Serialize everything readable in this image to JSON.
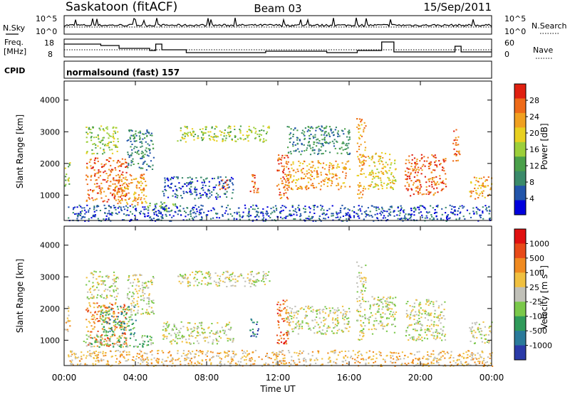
{
  "header": {
    "station": "Saskatoon (fitACF)",
    "beam": "Beam 03",
    "date": "15/Sep/2011"
  },
  "top_panel": {
    "left_label": "N.Sky",
    "left_ticks": [
      "10^5",
      "10^0"
    ],
    "right_ticks": [
      "10^5",
      "10^0"
    ],
    "right_label": "N.Search",
    "right_line_style": "dotted"
  },
  "freq_panel": {
    "left_label_line1": "Freq.",
    "left_label_line2": "[MHz]",
    "left_ticks": [
      "18",
      "8"
    ],
    "right_ticks": [
      "60",
      "0"
    ],
    "right_label": "Nave",
    "right_line_style": "dotted"
  },
  "cpid": {
    "label": "CPID",
    "value": "normalsound (fast) 157"
  },
  "chart_data": [
    {
      "type": "heatmap",
      "panel": "power",
      "ylabel": "Slant Range [km]",
      "yticks": [
        "1000",
        "2000",
        "3000",
        "4000"
      ],
      "ylim": [
        200,
        4600
      ],
      "colorbar_label": "Power [dB]",
      "colorbar_ticks": [
        "28",
        "24",
        "20",
        "16",
        "12",
        "8",
        "4"
      ],
      "colors": [
        "#0000dd",
        "#2255aa",
        "#3a8a6a",
        "#4aa04a",
        "#9ccf3a",
        "#e8d020",
        "#f0a020",
        "#ee6a18",
        "#e02010"
      ],
      "scatter_regions": [
        {
          "t0": 0.0,
          "t1": 0.3,
          "r0": 1300,
          "r1": 2100,
          "level": 4
        },
        {
          "t0": 1.2,
          "t1": 3.0,
          "r0": 2300,
          "r1": 3200,
          "level": 4
        },
        {
          "t0": 1.2,
          "t1": 3.5,
          "r0": 800,
          "r1": 2200,
          "level": 7
        },
        {
          "t0": 2.8,
          "t1": 4.6,
          "r0": 700,
          "r1": 1700,
          "level": 6
        },
        {
          "t0": 3.5,
          "t1": 5.0,
          "r0": 1800,
          "r1": 3100,
          "level": 2
        },
        {
          "t0": 4.6,
          "t1": 6.2,
          "r0": 500,
          "r1": 800,
          "level": 3
        },
        {
          "t0": 6.3,
          "t1": 11.5,
          "r0": 2700,
          "r1": 3200,
          "level": 4
        },
        {
          "t0": 5.5,
          "t1": 9.5,
          "r0": 900,
          "r1": 1600,
          "level": 1
        },
        {
          "t0": 8.6,
          "t1": 9.2,
          "r0": 1200,
          "r1": 1500,
          "level": 7
        },
        {
          "t0": 10.4,
          "t1": 10.9,
          "r0": 1100,
          "r1": 1700,
          "level": 7
        },
        {
          "t0": 11.9,
          "t1": 12.6,
          "r0": 900,
          "r1": 2300,
          "level": 7
        },
        {
          "t0": 12.4,
          "t1": 16.0,
          "r0": 1200,
          "r1": 2100,
          "level": 6
        },
        {
          "t0": 12.5,
          "t1": 16.0,
          "r0": 2300,
          "r1": 3200,
          "level": 2
        },
        {
          "t0": 16.4,
          "t1": 16.9,
          "r0": 900,
          "r1": 3500,
          "level": 6
        },
        {
          "t0": 17.0,
          "t1": 18.6,
          "r0": 1200,
          "r1": 2400,
          "level": 5
        },
        {
          "t0": 19.1,
          "t1": 21.4,
          "r0": 1000,
          "r1": 2300,
          "level": 7
        },
        {
          "t0": 21.8,
          "t1": 22.2,
          "r0": 2100,
          "r1": 3100,
          "level": 7
        },
        {
          "t0": 22.7,
          "t1": 24.0,
          "r0": 900,
          "r1": 1600,
          "level": 6
        },
        {
          "t0": 0.2,
          "t1": 24.0,
          "r0": 200,
          "r1": 700,
          "level": 1
        }
      ]
    },
    {
      "type": "heatmap",
      "panel": "velocity",
      "xlabel": "Time UT",
      "ylabel": "Slant Range [km]",
      "yticks": [
        "1000",
        "2000",
        "3000",
        "4000"
      ],
      "ylim": [
        200,
        4600
      ],
      "xticks": [
        "00:00",
        "04:00",
        "08:00",
        "12:00",
        "16:00",
        "20:00",
        "00:00"
      ],
      "colorbar_label": "Velocity [m s",
      "colorbar_exp": "-1",
      "colorbar_label_end": "]",
      "colorbar_ticks": [
        "1000",
        "500",
        "100",
        "25",
        "-25",
        "-100",
        "-500",
        "-1000"
      ],
      "colors": [
        "#2a3aa8",
        "#2a7a9a",
        "#2f9a5a",
        "#7ac84a",
        "#c0c0b8",
        "#f0c040",
        "#f08a20",
        "#e84a18",
        "#e01010"
      ],
      "scatter_regions": [
        {
          "t0": 0.0,
          "t1": 0.3,
          "r0": 1300,
          "r1": 2100,
          "level": 5
        },
        {
          "t0": 1.2,
          "t1": 3.0,
          "r0": 2300,
          "r1": 3200,
          "level": 4
        },
        {
          "t0": 1.2,
          "t1": 3.5,
          "r0": 800,
          "r1": 2200,
          "level": 6
        },
        {
          "t0": 2.0,
          "t1": 4.0,
          "r0": 1200,
          "r1": 2100,
          "level": 2
        },
        {
          "t0": 3.5,
          "t1": 5.0,
          "r0": 1800,
          "r1": 3100,
          "level": 4
        },
        {
          "t0": 6.3,
          "t1": 11.5,
          "r0": 2700,
          "r1": 3200,
          "level": 4
        },
        {
          "t0": 5.5,
          "t1": 9.5,
          "r0": 900,
          "r1": 1600,
          "level": 4
        },
        {
          "t0": 10.4,
          "t1": 10.9,
          "r0": 1100,
          "r1": 1700,
          "level": 1
        },
        {
          "t0": 11.9,
          "t1": 12.6,
          "r0": 900,
          "r1": 2300,
          "level": 7
        },
        {
          "t0": 12.4,
          "t1": 16.0,
          "r0": 1200,
          "r1": 2100,
          "level": 4
        },
        {
          "t0": 16.4,
          "t1": 16.9,
          "r0": 900,
          "r1": 3500,
          "level": 4
        },
        {
          "t0": 17.0,
          "t1": 18.6,
          "r0": 1200,
          "r1": 2400,
          "level": 4
        },
        {
          "t0": 19.1,
          "t1": 21.4,
          "r0": 1000,
          "r1": 2300,
          "level": 4
        },
        {
          "t0": 22.7,
          "t1": 24.0,
          "r0": 900,
          "r1": 1600,
          "level": 4
        },
        {
          "t0": 1.0,
          "t1": 5.0,
          "r0": 800,
          "r1": 1200,
          "level": 3
        },
        {
          "t0": 0.2,
          "t1": 24.0,
          "r0": 200,
          "r1": 700,
          "level": 5
        }
      ]
    }
  ]
}
